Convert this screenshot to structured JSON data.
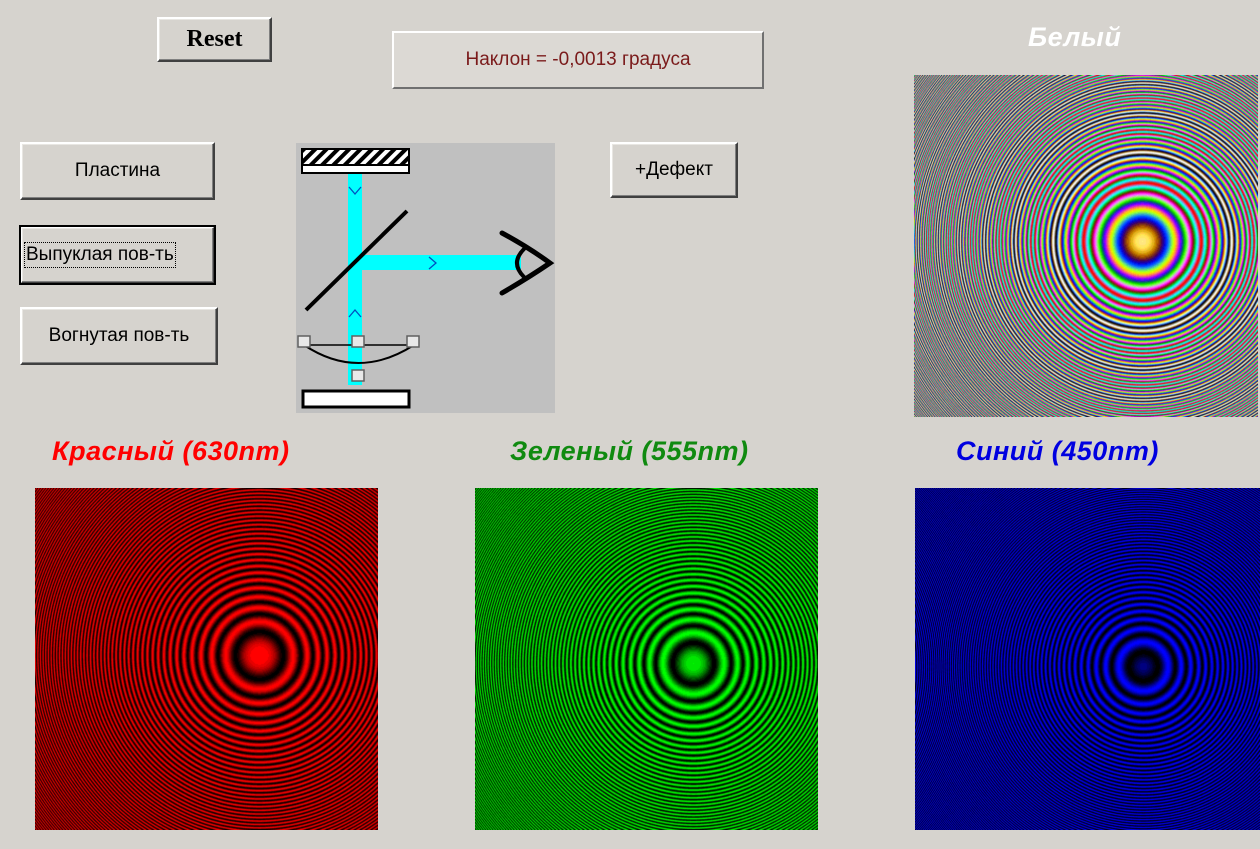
{
  "toolbar": {
    "reset_label": "Reset",
    "tilt_readout": "Наклон = -0,0013 градуса"
  },
  "surface_buttons": {
    "plate": "Пластина",
    "convex": "Выпуклая пов-ть",
    "concave": "Вогнутая пов-ть",
    "selected": "convex"
  },
  "defect_label": "+Дефект",
  "panels": {
    "white": {
      "title": "Белый"
    },
    "red": {
      "title": "Красный (630nm)",
      "wavelength_nm": 630,
      "color": "#ff0000"
    },
    "green": {
      "title": "Зеленый (555nm)",
      "wavelength_nm": 555,
      "color": "#00ff00"
    },
    "blue": {
      "title": "Синий (450nm)",
      "wavelength_nm": 450,
      "color": "#0000ff"
    }
  },
  "schematic": {
    "beam_color": "#00ffff",
    "background": "#c0c0c0",
    "icons": [
      "reference-mirror-icon",
      "beam-splitter-icon",
      "eye-icon",
      "convex-lens-icon",
      "test-plate-icon"
    ]
  }
}
